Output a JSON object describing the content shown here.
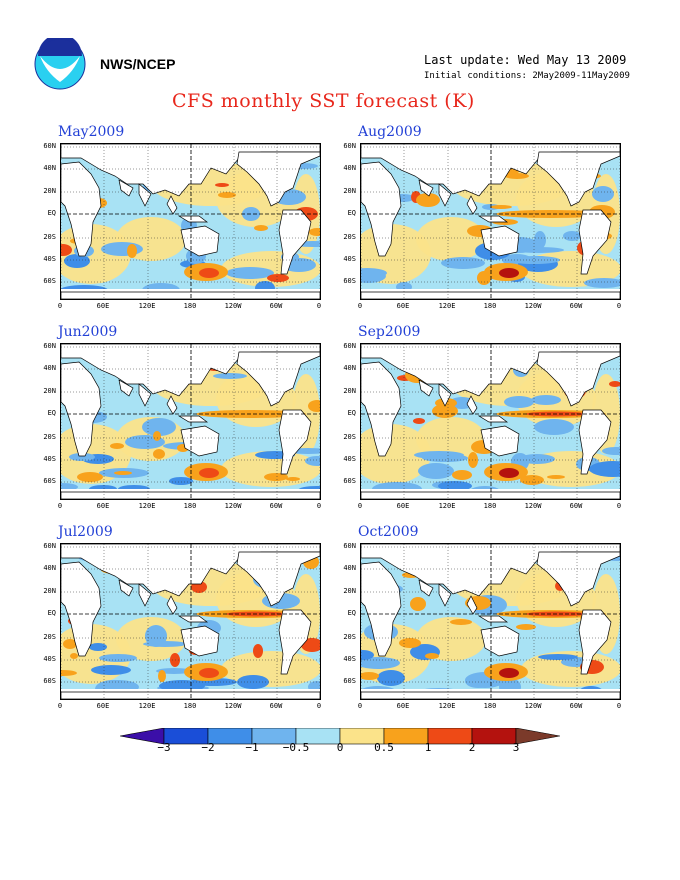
{
  "header": {
    "agency": "NWS/NCEP",
    "last_update": "Last update: Wed May 13 2009",
    "initial_conditions": "Initial conditions: 2May2009-11May2009",
    "title": "CFS monthly SST forecast (K)",
    "logo_icon": "noaa-logo-icon"
  },
  "panels": [
    {
      "label": "May2009"
    },
    {
      "label": "Aug2009"
    },
    {
      "label": "Jun2009"
    },
    {
      "label": "Sep2009"
    },
    {
      "label": "Jul2009"
    },
    {
      "label": "Oct2009"
    }
  ],
  "lat_labels": [
    "60N",
    "40N",
    "20N",
    "EQ",
    "20S",
    "40S",
    "60S"
  ],
  "lon_labels": [
    "0",
    "60E",
    "120E",
    "180",
    "120W",
    "60W",
    "0"
  ],
  "colorbar": {
    "ticks": [
      "−3",
      "−2",
      "−1",
      "−0.5",
      "0",
      "0.5",
      "1",
      "2",
      "3"
    ],
    "colors": [
      "#3b0fa8",
      "#1a4ed8",
      "#3f8ee8",
      "#6fb4ee",
      "#a8e2f4",
      "#fbe38a",
      "#f8a21c",
      "#ee4a16",
      "#b4120e",
      "#7b3a2a"
    ]
  }
}
